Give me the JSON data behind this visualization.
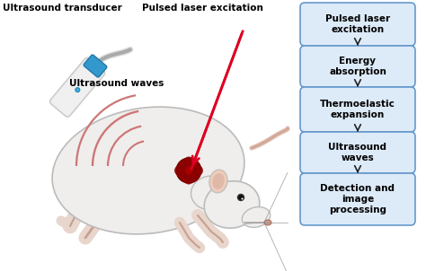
{
  "flowchart_boxes": [
    "Pulsed laser\nexcitation",
    "Energy\nabsorption",
    "Thermoelastic\nexpansion",
    "Ultrasound\nwaves",
    "Detection and\nimage\nprocessing"
  ],
  "flowchart_box_color": "#ccddf0",
  "flowchart_box_fill": "#ddeaf8",
  "flowchart_border_color": "#6699cc",
  "flowchart_text_color": "#000000",
  "flowchart_arrow_color": "#222222",
  "label_ultrasound_transducer": "Ultrasound transducer",
  "label_pulsed_laser": "Pulsed laser excitation",
  "label_ultrasound_waves": "Ultrasound waves",
  "background_color": "#ffffff",
  "wave_color": "#cc7777",
  "laser_color": "#dd0022",
  "mouse_body_color": "#f0eeec",
  "mouse_skin_color": "#e8d5cc",
  "mouse_outline_color": "#bbbbbb",
  "tumor_color": "#aa0000",
  "tumor_lobe_color": "#880000",
  "transducer_body_color": "#f0f0f0",
  "transducer_tip_color": "#3399cc",
  "transducer_outline_color": "#cccccc",
  "cable_color": "#dddddd"
}
